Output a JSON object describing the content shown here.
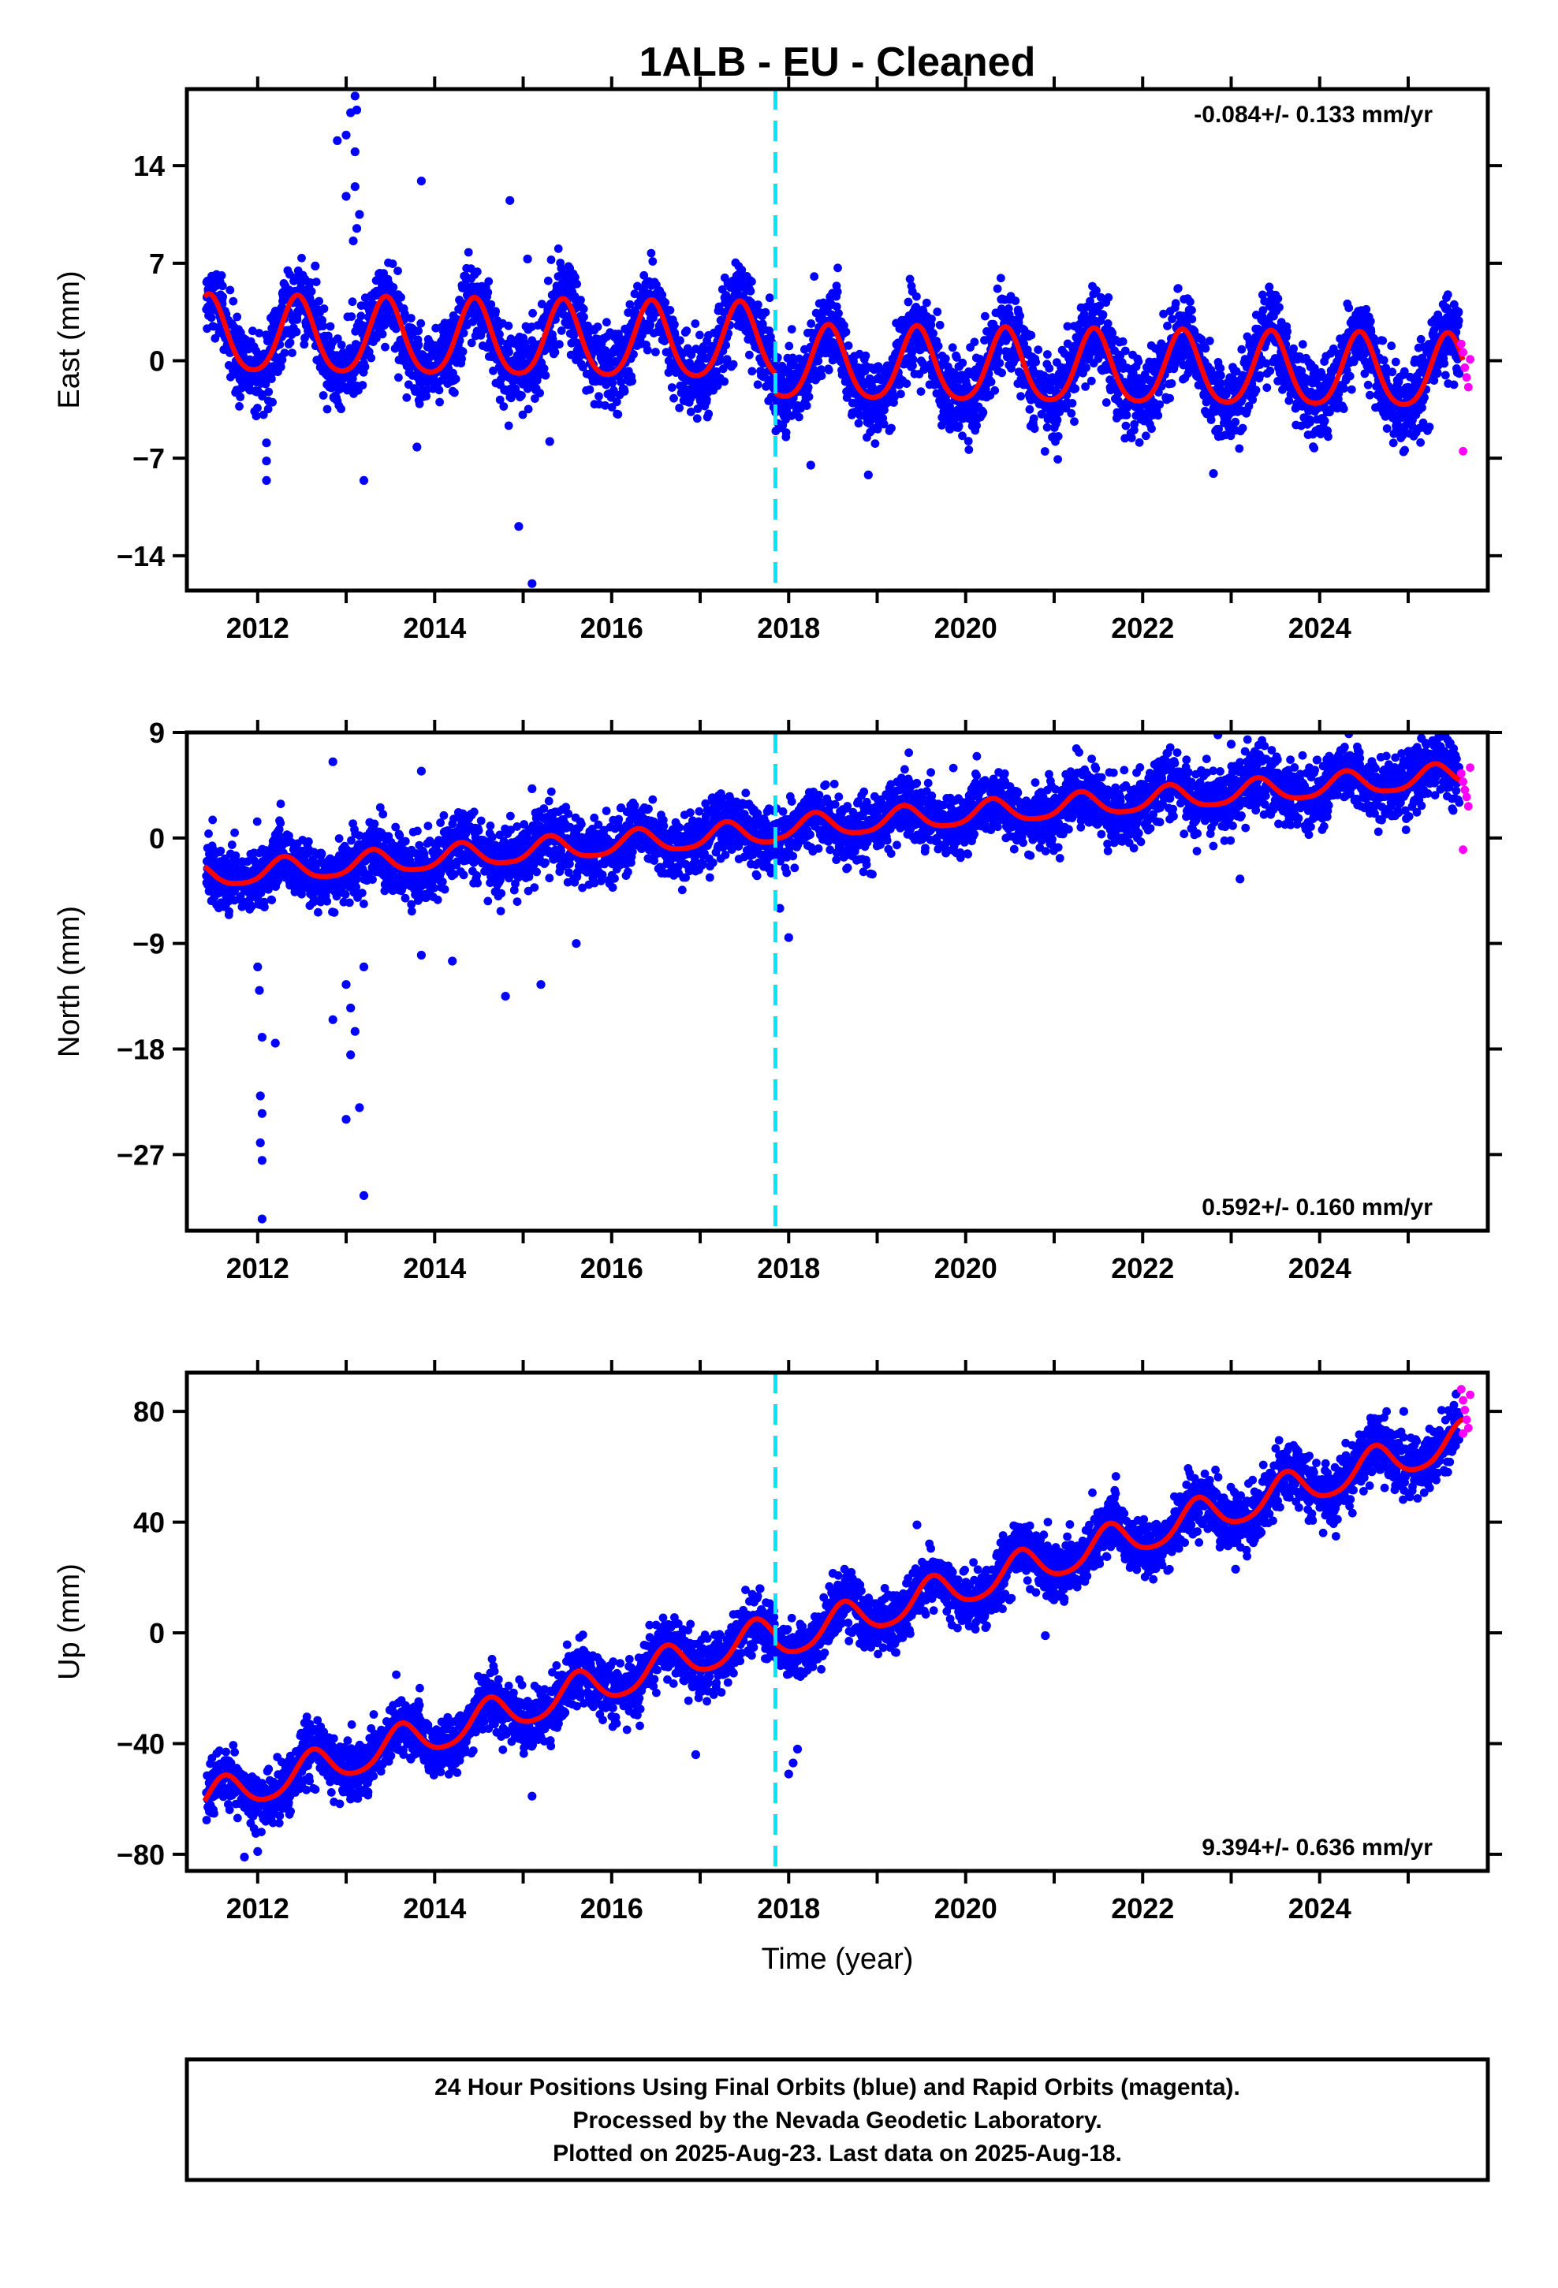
{
  "title": "1ALB  - EU - Cleaned",
  "x_axis_label": "Time (year)",
  "x_ticks": [
    "2012",
    "2014",
    "2016",
    "2018",
    "2020",
    "2022",
    "2024"
  ],
  "colors": {
    "final_orbits": "#0000ff",
    "rapid_orbits": "#ff00ff",
    "fit": "#ff0000",
    "equipment_change": "#00e5ff",
    "frame": "#000000"
  },
  "caption": {
    "line1": "24 Hour Positions Using Final Orbits (blue) and Rapid Orbits (magenta).",
    "line2": "Processed by the Nevada Geodetic Laboratory.",
    "line3": "Plotted on 2025-Aug-23. Last data on 2025-Aug-18."
  },
  "chart_data": [
    {
      "type": "scatter",
      "component": "east",
      "ylabel": "East (mm)",
      "rate_label": "-0.084+/- 0.133 mm/yr",
      "rate_position": "top-right",
      "xlim": [
        2011.2,
        2025.9
      ],
      "ylim": [
        -16.5,
        19.5
      ],
      "y_ticks": [
        -14,
        -7,
        0,
        7,
        14
      ],
      "y_tick_labels": [
        "−14",
        "−7",
        "0",
        "7",
        "14"
      ],
      "equipment_change_x": 2017.85,
      "fit": {
        "segments": [
          {
            "x_start": 2011.4,
            "x_end": 2017.85,
            "offset": 1.7,
            "rate": -0.084,
            "annual_amp": 2.7,
            "annual_phase_peak": 0.45,
            "semiannual_amp": 0.4
          },
          {
            "x_start": 2017.85,
            "x_end": 2025.62,
            "offset": 0.2,
            "rate": -0.084,
            "annual_amp": 2.6,
            "annual_phase_peak": 0.45,
            "semiannual_amp": 0.4
          }
        ]
      },
      "scatter_band_sd": 1.4,
      "outliers": [
        {
          "x": 2012.1,
          "y": -8.6
        },
        {
          "x": 2012.1,
          "y": -7.2
        },
        {
          "x": 2012.1,
          "y": -5.9
        },
        {
          "x": 2012.9,
          "y": 15.8
        },
        {
          "x": 2013.0,
          "y": 16.2
        },
        {
          "x": 2013.05,
          "y": 17.8
        },
        {
          "x": 2013.1,
          "y": 19.0
        },
        {
          "x": 2013.12,
          "y": 18.0
        },
        {
          "x": 2013.1,
          "y": 15.0
        },
        {
          "x": 2013.1,
          "y": 12.5
        },
        {
          "x": 2013.15,
          "y": 10.5
        },
        {
          "x": 2013.12,
          "y": 9.5
        },
        {
          "x": 2013.08,
          "y": 8.6
        },
        {
          "x": 2013.0,
          "y": 11.8
        },
        {
          "x": 2013.2,
          "y": -8.6
        },
        {
          "x": 2013.85,
          "y": 12.9
        },
        {
          "x": 2014.85,
          "y": 11.5
        },
        {
          "x": 2014.95,
          "y": -11.9
        },
        {
          "x": 2015.1,
          "y": -16.0
        },
        {
          "x": 2015.05,
          "y": 7.3
        },
        {
          "x": 2012.65,
          "y": 6.8
        },
        {
          "x": 2013.8,
          "y": -6.2
        },
        {
          "x": 2018.25,
          "y": -7.5
        },
        {
          "x": 2018.9,
          "y": -8.2
        },
        {
          "x": 2022.8,
          "y": -8.1
        },
        {
          "x": 2015.3,
          "y": -5.8
        }
      ],
      "rapid_orbit_points": [
        {
          "x": 2025.6,
          "y": 1.2
        },
        {
          "x": 2025.62,
          "y": 0.6
        },
        {
          "x": 2025.64,
          "y": -0.5
        },
        {
          "x": 2025.66,
          "y": -1.2
        },
        {
          "x": 2025.68,
          "y": -1.9
        },
        {
          "x": 2025.7,
          "y": 0.1
        },
        {
          "x": 2025.62,
          "y": -6.5
        }
      ]
    },
    {
      "type": "scatter",
      "component": "north",
      "ylabel": "North (mm)",
      "rate_label": "0.592+/- 0.160 mm/yr",
      "rate_position": "bottom-right",
      "xlim": [
        2011.2,
        2025.9
      ],
      "ylim": [
        -33.5,
        9.0
      ],
      "y_ticks": [
        -27,
        -18,
        -9,
        0,
        9
      ],
      "y_tick_labels": [
        "−27",
        "−18",
        "−9",
        "0",
        "9"
      ],
      "equipment_change_x": 2017.85,
      "fit": {
        "segments": [
          {
            "x_start": 2011.4,
            "x_end": 2017.85,
            "offset": -3.3,
            "rate": 0.592,
            "annual_amp": 1.0,
            "annual_phase_peak": 0.3,
            "semiannual_amp": 0.2
          },
          {
            "x_start": 2017.85,
            "x_end": 2025.62,
            "offset": -3.1,
            "rate": 0.592,
            "annual_amp": 1.0,
            "annual_phase_peak": 0.3,
            "semiannual_amp": 0.2
          }
        ]
      },
      "scatter_band_sd": 1.3,
      "outliers": [
        {
          "x": 2012.0,
          "y": -11.0
        },
        {
          "x": 2012.02,
          "y": -13.0
        },
        {
          "x": 2012.05,
          "y": -17.0
        },
        {
          "x": 2012.03,
          "y": -22.0
        },
        {
          "x": 2012.05,
          "y": -23.5
        },
        {
          "x": 2012.03,
          "y": -26.0
        },
        {
          "x": 2012.05,
          "y": -27.5
        },
        {
          "x": 2012.05,
          "y": -32.5
        },
        {
          "x": 2012.2,
          "y": -17.5
        },
        {
          "x": 2012.85,
          "y": 6.5
        },
        {
          "x": 2012.85,
          "y": -15.5
        },
        {
          "x": 2013.0,
          "y": -12.5
        },
        {
          "x": 2013.05,
          "y": -14.5
        },
        {
          "x": 2013.1,
          "y": -16.5
        },
        {
          "x": 2013.05,
          "y": -18.5
        },
        {
          "x": 2013.0,
          "y": -24.0
        },
        {
          "x": 2013.15,
          "y": -23.0
        },
        {
          "x": 2013.2,
          "y": -30.5
        },
        {
          "x": 2013.2,
          "y": -11.0
        },
        {
          "x": 2013.85,
          "y": 5.7
        },
        {
          "x": 2013.85,
          "y": -10.0
        },
        {
          "x": 2014.2,
          "y": -10.5
        },
        {
          "x": 2014.8,
          "y": -13.5
        },
        {
          "x": 2015.1,
          "y": 4.2
        },
        {
          "x": 2015.2,
          "y": -12.5
        },
        {
          "x": 2015.6,
          "y": -9.0
        },
        {
          "x": 2018.0,
          "y": -8.5
        },
        {
          "x": 2017.9,
          "y": -6.0
        },
        {
          "x": 2023.0,
          "y": 8.0
        },
        {
          "x": 2022.85,
          "y": 8.8
        },
        {
          "x": 2025.15,
          "y": 8.5
        },
        {
          "x": 2023.1,
          "y": -3.5
        }
      ],
      "rapid_orbit_points": [
        {
          "x": 2025.6,
          "y": 5.5
        },
        {
          "x": 2025.62,
          "y": 4.8
        },
        {
          "x": 2025.64,
          "y": 4.1
        },
        {
          "x": 2025.66,
          "y": 3.5
        },
        {
          "x": 2025.68,
          "y": 2.7
        },
        {
          "x": 2025.7,
          "y": 6.0
        },
        {
          "x": 2025.62,
          "y": -1.0
        }
      ]
    },
    {
      "type": "scatter",
      "component": "up",
      "ylabel": "Up (mm)",
      "rate_label": "9.394+/- 0.636 mm/yr",
      "rate_position": "bottom-right",
      "xlim": [
        2011.2,
        2025.9
      ],
      "ylim": [
        -86.0,
        94.0
      ],
      "y_ticks": [
        -80,
        -40,
        0,
        40,
        80
      ],
      "y_tick_labels": [
        "−80",
        "−40",
        "0",
        "40",
        "80"
      ],
      "equipment_change_x": 2017.85,
      "fit": {
        "segments": [
          {
            "x_start": 2011.4,
            "x_end": 2017.85,
            "offset": -61.0,
            "rate": 9.394,
            "annual_amp": 6.5,
            "annual_phase_peak": 0.62,
            "semiannual_amp": 1.0
          },
          {
            "x_start": 2017.85,
            "x_end": 2025.62,
            "offset": -64.0,
            "rate": 9.394,
            "annual_amp": 6.5,
            "annual_phase_peak": 0.62,
            "semiannual_amp": 1.0
          }
        ]
      },
      "scatter_band_sd": 5.0,
      "outliers": [
        {
          "x": 2011.85,
          "y": -81.0
        },
        {
          "x": 2012.0,
          "y": -79.0
        },
        {
          "x": 2015.1,
          "y": -59.0
        },
        {
          "x": 2016.95,
          "y": -44.0
        },
        {
          "x": 2018.0,
          "y": -51.0
        },
        {
          "x": 2018.05,
          "y": -47.0
        },
        {
          "x": 2018.1,
          "y": -42.0
        },
        {
          "x": 2020.9,
          "y": -1.0
        },
        {
          "x": 2018.5,
          "y": 21.5
        },
        {
          "x": 2019.45,
          "y": 39.0
        },
        {
          "x": 2024.95,
          "y": 80.0
        },
        {
          "x": 2023.05,
          "y": 23.0
        },
        {
          "x": 2024.2,
          "y": 41.0
        }
      ],
      "rapid_orbit_points": [
        {
          "x": 2025.6,
          "y": 88.0
        },
        {
          "x": 2025.62,
          "y": 84.0
        },
        {
          "x": 2025.64,
          "y": 80.5
        },
        {
          "x": 2025.66,
          "y": 77.0
        },
        {
          "x": 2025.68,
          "y": 74.0
        },
        {
          "x": 2025.7,
          "y": 86.0
        },
        {
          "x": 2025.62,
          "y": 72.0
        }
      ]
    }
  ]
}
